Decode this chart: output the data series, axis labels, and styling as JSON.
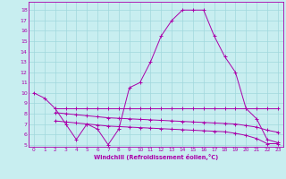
{
  "title": "",
  "xlabel": "Windchill (Refroidissement éolien,°C)",
  "bg_color": "#c8eef0",
  "grid_color": "#a0d8dc",
  "line_color": "#aa00aa",
  "xlim": [
    -0.5,
    23.5
  ],
  "ylim": [
    4.8,
    18.8
  ],
  "yticks": [
    5,
    6,
    7,
    8,
    9,
    10,
    11,
    12,
    13,
    14,
    15,
    16,
    17,
    18
  ],
  "xticks": [
    0,
    1,
    2,
    3,
    4,
    5,
    6,
    7,
    8,
    9,
    10,
    11,
    12,
    13,
    14,
    15,
    16,
    17,
    18,
    19,
    20,
    21,
    22,
    23
  ],
  "line1_x": [
    0,
    1,
    2,
    3,
    4,
    5,
    6,
    7,
    8,
    9,
    10,
    11,
    12,
    13,
    14,
    15,
    16,
    17,
    18,
    19,
    20,
    21,
    22,
    23
  ],
  "line1_y": [
    10,
    9.5,
    8.5,
    7.0,
    5.5,
    7.0,
    6.5,
    5.0,
    6.5,
    10.5,
    11.0,
    13.0,
    15.5,
    17.0,
    18.0,
    18.0,
    18.0,
    15.5,
    13.5,
    12.0,
    8.5,
    7.5,
    5.5,
    5.2
  ],
  "line2_x": [
    2,
    3,
    4,
    5,
    6,
    7,
    8,
    9,
    10,
    11,
    12,
    13,
    14,
    15,
    16,
    17,
    18,
    19,
    20,
    21,
    22,
    23
  ],
  "line2_y": [
    8.5,
    8.5,
    8.5,
    8.5,
    8.5,
    8.5,
    8.5,
    8.5,
    8.5,
    8.5,
    8.5,
    8.5,
    8.5,
    8.5,
    8.5,
    8.5,
    8.5,
    8.5,
    8.5,
    8.5,
    8.5,
    8.5
  ],
  "line3_x": [
    2,
    3,
    4,
    5,
    6,
    7,
    8,
    9,
    10,
    11,
    12,
    13,
    14,
    15,
    16,
    17,
    18,
    19,
    20,
    21,
    22,
    23
  ],
  "line3_y": [
    8.1,
    8.0,
    7.9,
    7.8,
    7.7,
    7.6,
    7.55,
    7.5,
    7.45,
    7.4,
    7.35,
    7.3,
    7.25,
    7.2,
    7.15,
    7.1,
    7.05,
    7.0,
    6.85,
    6.7,
    6.4,
    6.2
  ],
  "line4_x": [
    2,
    3,
    4,
    5,
    6,
    7,
    8,
    9,
    10,
    11,
    12,
    13,
    14,
    15,
    16,
    17,
    18,
    19,
    20,
    21,
    22,
    23
  ],
  "line4_y": [
    7.3,
    7.2,
    7.1,
    7.0,
    6.9,
    6.8,
    6.75,
    6.7,
    6.65,
    6.6,
    6.55,
    6.5,
    6.45,
    6.4,
    6.35,
    6.3,
    6.25,
    6.1,
    5.9,
    5.6,
    5.1,
    5.1
  ]
}
